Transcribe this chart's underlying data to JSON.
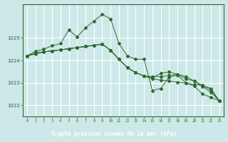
{
  "background_color": "#cce8e8",
  "plot_bg_color": "#cce8e8",
  "grid_color": "#ffffff",
  "line_color": "#2d6a2d",
  "title": "Graphe pression niveau de la mer (hPa)",
  "title_bg": "#2d6a2d",
  "title_fg": "#ffffff",
  "xlim": [
    -0.5,
    23.5
  ],
  "ylim": [
    1021.5,
    1026.5
  ],
  "yticks": [
    1022,
    1023,
    1024,
    1025
  ],
  "xticks": [
    0,
    1,
    2,
    3,
    4,
    5,
    6,
    7,
    8,
    9,
    10,
    11,
    12,
    13,
    14,
    15,
    16,
    17,
    18,
    19,
    20,
    21,
    22,
    23
  ],
  "series": [
    [
      1024.2,
      1024.4,
      1024.5,
      1024.65,
      1024.75,
      1025.35,
      1025.05,
      1025.45,
      1025.75,
      1026.05,
      1025.85,
      1024.75,
      1024.2,
      1024.05,
      1024.05,
      1022.65,
      1022.75,
      1023.25,
      1023.35,
      1023.0,
      1022.85,
      1022.5,
      1022.35,
      1022.2
    ],
    [
      1024.2,
      1024.32,
      1024.38,
      1024.42,
      1024.47,
      1024.52,
      1024.57,
      1024.62,
      1024.67,
      1024.72,
      1024.45,
      1024.05,
      1023.68,
      1023.45,
      1023.3,
      1023.18,
      1023.12,
      1023.08,
      1023.03,
      1022.98,
      1022.93,
      1022.88,
      1022.75,
      1022.2
    ],
    [
      1024.2,
      1024.32,
      1024.38,
      1024.42,
      1024.47,
      1024.52,
      1024.57,
      1024.62,
      1024.67,
      1024.72,
      1024.45,
      1024.05,
      1023.68,
      1023.45,
      1023.3,
      1023.28,
      1023.28,
      1023.32,
      1023.38,
      1023.28,
      1023.08,
      1022.88,
      1022.68,
      1022.2
    ],
    [
      1024.2,
      1024.28,
      1024.38,
      1024.42,
      1024.47,
      1024.52,
      1024.57,
      1024.62,
      1024.67,
      1024.72,
      1024.45,
      1024.05,
      1023.68,
      1023.45,
      1023.3,
      1023.22,
      1023.42,
      1023.48,
      1023.38,
      1023.18,
      1023.08,
      1022.83,
      1022.58,
      1022.2
    ]
  ]
}
